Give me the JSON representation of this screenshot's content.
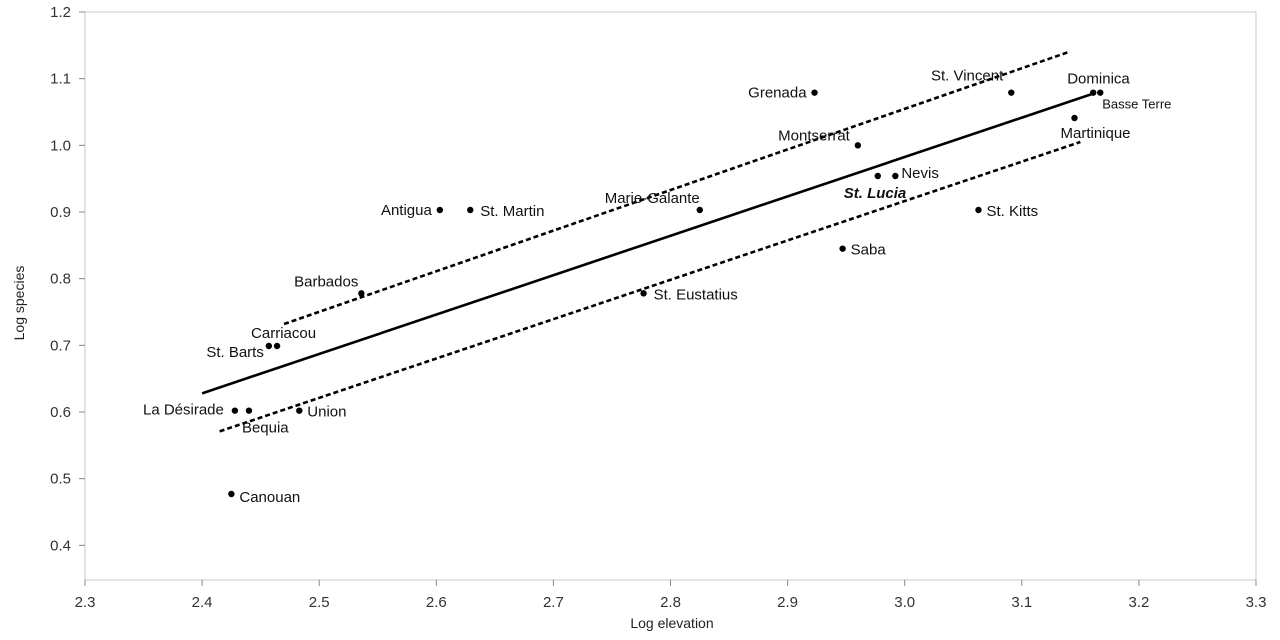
{
  "chart_data": {
    "type": "scatter",
    "xlabel": "Log elevation",
    "ylabel": "Log species",
    "xlim": [
      2.3,
      3.3
    ],
    "ylim": [
      0.35,
      1.2
    ],
    "xticks": [
      "2.3",
      "2.4",
      "2.5",
      "2.6",
      "2.7",
      "2.8",
      "2.9",
      "3.0",
      "3.1",
      "3.2",
      "3.3"
    ],
    "yticks": [
      "0.4",
      "0.5",
      "0.6",
      "0.7",
      "0.8",
      "0.9",
      "1.0",
      "1.1",
      "1.2"
    ],
    "grid": false,
    "points": [
      {
        "label": "Grenada",
        "x": 2.923,
        "y": 1.079
      },
      {
        "label": "St. Vincent",
        "x": 3.091,
        "y": 1.079
      },
      {
        "label": "Dominica",
        "x": 3.161,
        "y": 1.079
      },
      {
        "label": "Basse Terre",
        "x": 3.167,
        "y": 1.079
      },
      {
        "label": "Martinique",
        "x": 3.145,
        "y": 1.041
      },
      {
        "label": "Montserrat",
        "x": 2.96,
        "y": 1.0
      },
      {
        "label": "Nevis",
        "x": 2.992,
        "y": 0.954
      },
      {
        "label": "St. Lucia",
        "x": 2.977,
        "y": 0.954
      },
      {
        "label": "Antigua",
        "x": 2.603,
        "y": 0.903
      },
      {
        "label": "St. Martin",
        "x": 2.629,
        "y": 0.903
      },
      {
        "label": "Marie-Galante",
        "x": 2.825,
        "y": 0.903
      },
      {
        "label": "St. Kitts",
        "x": 3.063,
        "y": 0.903
      },
      {
        "label": "Saba",
        "x": 2.947,
        "y": 0.845
      },
      {
        "label": "Barbados",
        "x": 2.536,
        "y": 0.778
      },
      {
        "label": "St. Eustatius",
        "x": 2.777,
        "y": 0.778
      },
      {
        "label": "Carriacou",
        "x": 2.464,
        "y": 0.699
      },
      {
        "label": "St. Barts",
        "x": 2.457,
        "y": 0.699
      },
      {
        "label": "La Désirade",
        "x": 2.428,
        "y": 0.602
      },
      {
        "label": "Bequia",
        "x": 2.44,
        "y": 0.602
      },
      {
        "label": "Union",
        "x": 2.483,
        "y": 0.602
      },
      {
        "label": "Canouan",
        "x": 2.425,
        "y": 0.477
      }
    ],
    "regression_line": [
      [
        2.4,
        0.628
      ],
      [
        3.16,
        1.077
      ]
    ],
    "upper_confidence_band": [
      [
        2.47,
        0.732
      ],
      [
        3.14,
        1.14
      ]
    ],
    "lower_confidence_band": [
      [
        2.415,
        0.571
      ],
      [
        3.15,
        1.005
      ]
    ]
  }
}
